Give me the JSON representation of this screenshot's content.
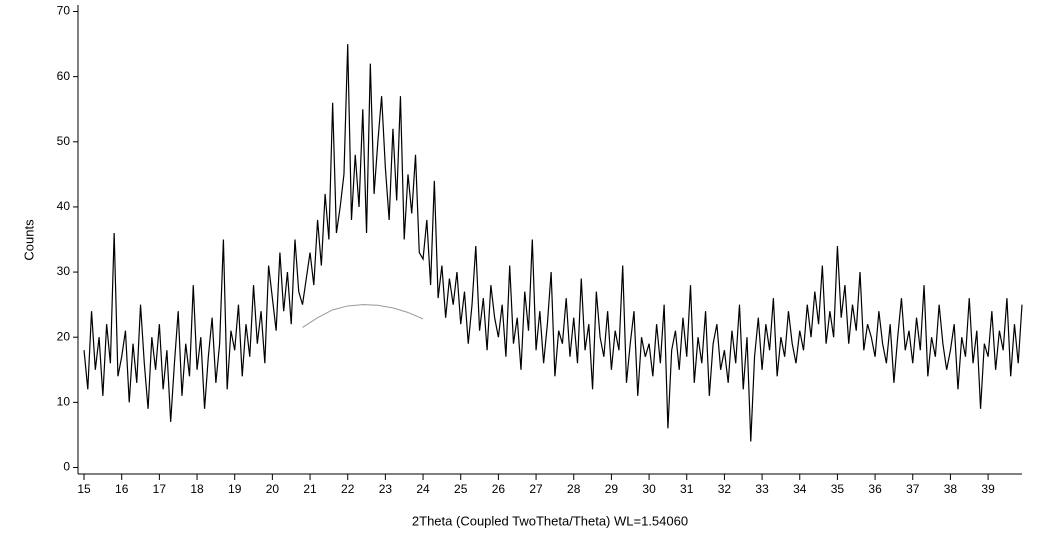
{
  "chart_data": {
    "type": "line",
    "xlabel": "2Theta (Coupled TwoTheta/Theta) WL=1.54060",
    "ylabel": "Counts",
    "xlim": [
      14.84,
      39.9
    ],
    "ylim": [
      -1,
      71
    ],
    "xticks": [
      15,
      16,
      17,
      18,
      19,
      20,
      21,
      22,
      23,
      24,
      25,
      26,
      27,
      28,
      29,
      30,
      31,
      32,
      33,
      34,
      35,
      36,
      37,
      38,
      39
    ],
    "yticks": [
      0,
      10,
      20,
      30,
      40,
      50,
      60,
      70
    ],
    "series": [
      {
        "color": "#000000",
        "x": [
          15.0,
          15.1,
          15.2,
          15.3,
          15.4,
          15.5,
          15.6,
          15.7,
          15.8,
          15.9,
          16.0,
          16.1,
          16.2,
          16.3,
          16.4,
          16.5,
          16.6,
          16.7,
          16.8,
          16.9,
          17.0,
          17.1,
          17.2,
          17.3,
          17.4,
          17.5,
          17.6,
          17.7,
          17.8,
          17.9,
          18.0,
          18.1,
          18.2,
          18.3,
          18.4,
          18.5,
          18.6,
          18.7,
          18.8,
          18.9,
          19.0,
          19.1,
          19.2,
          19.3,
          19.4,
          19.5,
          19.6,
          19.7,
          19.8,
          19.9,
          20.0,
          20.1,
          20.2,
          20.3,
          20.4,
          20.5,
          20.6,
          20.7,
          20.8,
          20.9,
          21.0,
          21.1,
          21.2,
          21.3,
          21.4,
          21.5,
          21.6,
          21.7,
          21.8,
          21.9,
          22.0,
          22.1,
          22.2,
          22.3,
          22.4,
          22.5,
          22.6,
          22.7,
          22.8,
          22.9,
          23.0,
          23.1,
          23.2,
          23.3,
          23.4,
          23.5,
          23.6,
          23.7,
          23.8,
          23.9,
          24.0,
          24.1,
          24.2,
          24.3,
          24.4,
          24.5,
          24.6,
          24.7,
          24.8,
          24.9,
          25.0,
          25.1,
          25.2,
          25.3,
          25.4,
          25.5,
          25.6,
          25.7,
          25.8,
          25.9,
          26.0,
          26.1,
          26.2,
          26.3,
          26.4,
          26.5,
          26.6,
          26.7,
          26.8,
          26.9,
          27.0,
          27.1,
          27.2,
          27.3,
          27.4,
          27.5,
          27.6,
          27.7,
          27.8,
          27.9,
          28.0,
          28.1,
          28.2,
          28.3,
          28.4,
          28.5,
          28.6,
          28.7,
          28.8,
          28.9,
          29.0,
          29.1,
          29.2,
          29.3,
          29.4,
          29.5,
          29.6,
          29.7,
          29.8,
          29.9,
          30.0,
          30.1,
          30.2,
          30.3,
          30.4,
          30.5,
          30.6,
          30.7,
          30.8,
          30.9,
          31.0,
          31.1,
          31.2,
          31.3,
          31.4,
          31.5,
          31.6,
          31.7,
          31.8,
          31.9,
          32.0,
          32.1,
          32.2,
          32.3,
          32.4,
          32.5,
          32.6,
          32.7,
          32.8,
          32.9,
          33.0,
          33.1,
          33.2,
          33.3,
          33.4,
          33.5,
          33.6,
          33.7,
          33.8,
          33.9,
          34.0,
          34.1,
          34.2,
          34.3,
          34.4,
          34.5,
          34.6,
          34.7,
          34.8,
          34.9,
          35.0,
          35.1,
          35.2,
          35.3,
          35.4,
          35.5,
          35.6,
          35.7,
          35.8,
          35.9,
          36.0,
          36.1,
          36.2,
          36.3,
          36.4,
          36.5,
          36.6,
          36.7,
          36.8,
          36.9,
          37.0,
          37.1,
          37.2,
          37.3,
          37.4,
          37.5,
          37.6,
          37.7,
          37.8,
          37.9,
          38.0,
          38.1,
          38.2,
          38.3,
          38.4,
          38.5,
          38.6,
          38.7,
          38.8,
          38.9,
          39.0,
          39.1,
          39.2,
          39.3,
          39.4,
          39.5,
          39.6,
          39.7,
          39.8,
          39.9
        ],
        "values": [
          18,
          12,
          24,
          15,
          20,
          11,
          22,
          16,
          36,
          14,
          17,
          21,
          10,
          19,
          13,
          25,
          16,
          9,
          20,
          15,
          22,
          12,
          18,
          7,
          16,
          24,
          11,
          19,
          14,
          28,
          15,
          20,
          9,
          17,
          23,
          13,
          19,
          35,
          12,
          21,
          18,
          25,
          14,
          22,
          17,
          28,
          19,
          24,
          16,
          31,
          26,
          21,
          33,
          24,
          30,
          22,
          35,
          27,
          25,
          29,
          33,
          28,
          38,
          31,
          42,
          35,
          56,
          36,
          40,
          45,
          65,
          38,
          48,
          40,
          55,
          36,
          62,
          42,
          50,
          57,
          46,
          38,
          52,
          41,
          57,
          35,
          45,
          39,
          48,
          33,
          32,
          38,
          28,
          44,
          26,
          31,
          23,
          29,
          25,
          30,
          22,
          27,
          19,
          25,
          34,
          21,
          26,
          18,
          28,
          23,
          20,
          25,
          17,
          31,
          19,
          23,
          15,
          27,
          21,
          35,
          18,
          24,
          16,
          22,
          30,
          14,
          21,
          19,
          26,
          17,
          23,
          16,
          29,
          18,
          22,
          12,
          27,
          20,
          17,
          24,
          15,
          21,
          18,
          31,
          13,
          19,
          24,
          11,
          20,
          17,
          19,
          14,
          22,
          16,
          25,
          6,
          18,
          21,
          15,
          23,
          17,
          28,
          13,
          20,
          16,
          24,
          11,
          19,
          22,
          15,
          18,
          13,
          21,
          16,
          25,
          12,
          20,
          4,
          17,
          23,
          15,
          22,
          18,
          26,
          14,
          20,
          17,
          24,
          19,
          16,
          21,
          18,
          25,
          20,
          27,
          22,
          31,
          19,
          24,
          20,
          34,
          23,
          28,
          19,
          25,
          21,
          30,
          18,
          22,
          20,
          17,
          24,
          19,
          16,
          22,
          13,
          20,
          26,
          18,
          21,
          16,
          23,
          18,
          28,
          14,
          20,
          17,
          25,
          19,
          15,
          18,
          22,
          12,
          20,
          17,
          26,
          16,
          21,
          9,
          19,
          17,
          24,
          15,
          21,
          18,
          26,
          14,
          22,
          16,
          25
        ]
      },
      {
        "color": "#999999",
        "x": [
          20.8,
          21.2,
          21.6,
          22.0,
          22.4,
          22.8,
          23.2,
          23.6,
          24.0
        ],
        "values": [
          21.5,
          23,
          24.2,
          24.8,
          25,
          24.9,
          24.5,
          23.8,
          22.8
        ]
      }
    ]
  }
}
